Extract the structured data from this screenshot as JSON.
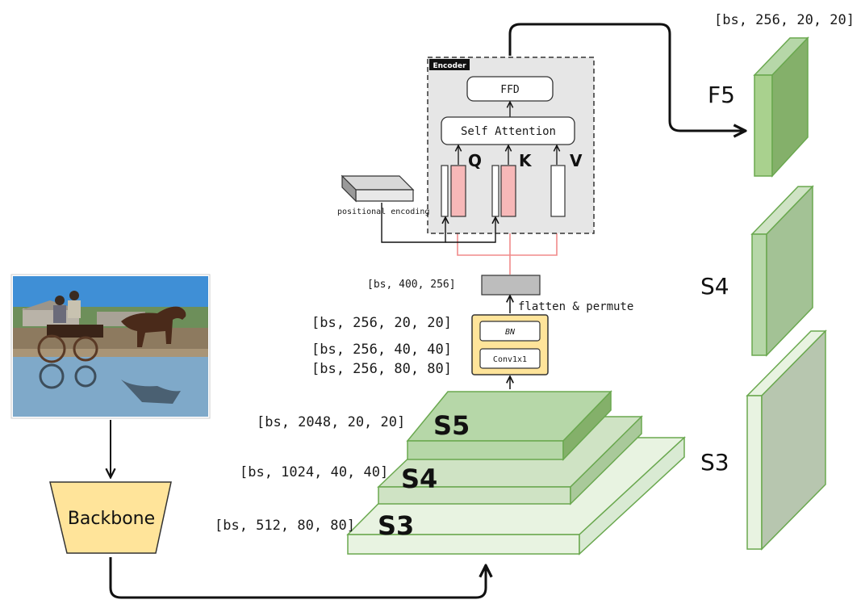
{
  "backbone": {
    "label": "Backbone"
  },
  "pyramid": {
    "s5": {
      "label": "S5",
      "shape": "[bs, 2048, 20, 20]"
    },
    "s4": {
      "label": "S4",
      "shape": "[bs, 1024, 40, 40]"
    },
    "s3": {
      "label": "S3",
      "shape": "[bs, 512, 80, 80]"
    }
  },
  "proj": {
    "bn": "BN",
    "conv": "Conv1x1",
    "shapes": [
      "[bs, 256, 20, 20]",
      "[bs, 256, 40, 40]",
      "[bs, 256, 80, 80]"
    ]
  },
  "flatten": {
    "label": "flatten & permute",
    "shape": "[bs, 400, 256]"
  },
  "encoder": {
    "title": "Encoder",
    "ffd": "FFD",
    "attn": "Self Attention",
    "q": "Q",
    "k": "K",
    "v": "V"
  },
  "pos": {
    "label": "positional encoding"
  },
  "outputs": {
    "f5": {
      "label": "F5",
      "shape": "[bs, 256, 20, 20]"
    },
    "s4": {
      "label": "S4"
    },
    "s3": {
      "label": "S3"
    }
  },
  "colors": {
    "green_top": "#b6d7a8",
    "green_front": "#a9d18e",
    "green_side": "#84b06a",
    "green_light": "#d9ead3",
    "green_lighter": "#e8f3e1",
    "yellow": "#ffe49a",
    "pink": "#f7b8b8",
    "encoder_bg": "#e6e6e6"
  }
}
